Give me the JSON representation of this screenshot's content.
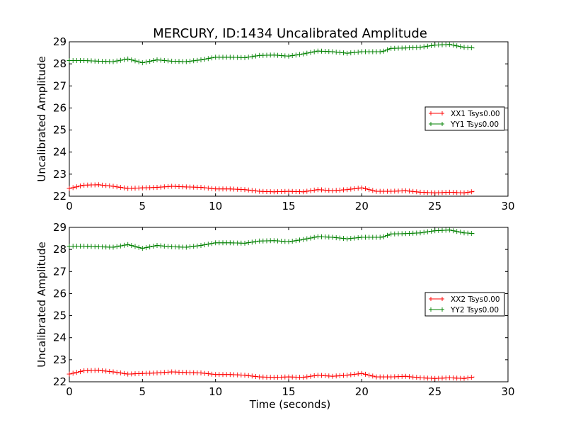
{
  "figure": {
    "title": "MERCURY, ID:1434 Uncalibrated Amplitude",
    "xlabel": "Time (seconds)"
  },
  "colors": {
    "xx": "#ff0000",
    "yy": "#008000"
  },
  "chart_data": [
    {
      "type": "line",
      "ylabel": "Uncalibrated Amplitude",
      "xlim": [
        0,
        30
      ],
      "ylim": [
        22,
        29
      ],
      "xticks": [
        "0",
        "5",
        "10",
        "15",
        "20",
        "25",
        "30"
      ],
      "yticks": [
        "22",
        "23",
        "24",
        "25",
        "26",
        "27",
        "28",
        "29"
      ],
      "legend_position": "center-right",
      "marker": "+",
      "grid": false,
      "series": [
        {
          "name": "XX1 Tsys0.00",
          "color": "#ff0000",
          "x": [
            0,
            1,
            2,
            3,
            4,
            5,
            6,
            7,
            8,
            9,
            10,
            11,
            12,
            13,
            14,
            15,
            16,
            17,
            18,
            19,
            20,
            21,
            22,
            23,
            24,
            25,
            26,
            27,
            27.7
          ],
          "y": [
            22.35,
            22.5,
            22.52,
            22.45,
            22.35,
            22.38,
            22.4,
            22.45,
            22.42,
            22.4,
            22.33,
            22.33,
            22.3,
            22.22,
            22.2,
            22.22,
            22.2,
            22.3,
            22.25,
            22.3,
            22.38,
            22.22,
            22.22,
            22.25,
            22.18,
            22.15,
            22.18,
            22.15,
            22.22
          ]
        },
        {
          "name": "YY1 Tsys0.00",
          "color": "#008000",
          "x": [
            0,
            1,
            2,
            3,
            4,
            5,
            6,
            7,
            8,
            9,
            10,
            11,
            12,
            13,
            14,
            15,
            16,
            17,
            18,
            19,
            20,
            21,
            21.4,
            22,
            23,
            24,
            25,
            26,
            27,
            27.7
          ],
          "y": [
            28.15,
            28.15,
            28.12,
            28.1,
            28.22,
            28.05,
            28.18,
            28.12,
            28.1,
            28.18,
            28.3,
            28.3,
            28.28,
            28.38,
            28.4,
            28.35,
            28.45,
            28.58,
            28.55,
            28.48,
            28.55,
            28.55,
            28.55,
            28.7,
            28.72,
            28.75,
            28.85,
            28.88,
            28.75,
            28.72
          ]
        }
      ]
    },
    {
      "type": "line",
      "ylabel": "Uncalibrated Amplitude",
      "xlabel": "Time (seconds)",
      "xlim": [
        0,
        30
      ],
      "ylim": [
        22,
        29
      ],
      "xticks": [
        "0",
        "5",
        "10",
        "15",
        "20",
        "25",
        "30"
      ],
      "yticks": [
        "22",
        "23",
        "24",
        "25",
        "26",
        "27",
        "28",
        "29"
      ],
      "legend_position": "center-right",
      "marker": "+",
      "grid": false,
      "series": [
        {
          "name": "XX2 Tsys0.00",
          "color": "#ff0000",
          "x": [
            0,
            1,
            2,
            3,
            4,
            5,
            6,
            7,
            8,
            9,
            10,
            11,
            12,
            13,
            14,
            15,
            16,
            17,
            18,
            19,
            20,
            21,
            22,
            23,
            24,
            25,
            26,
            27,
            27.7
          ],
          "y": [
            22.35,
            22.5,
            22.52,
            22.45,
            22.35,
            22.38,
            22.4,
            22.45,
            22.42,
            22.4,
            22.33,
            22.33,
            22.3,
            22.22,
            22.2,
            22.22,
            22.2,
            22.3,
            22.25,
            22.3,
            22.38,
            22.22,
            22.22,
            22.25,
            22.18,
            22.15,
            22.18,
            22.15,
            22.22
          ]
        },
        {
          "name": "YY2 Tsys0.00",
          "color": "#008000",
          "x": [
            0,
            1,
            2,
            3,
            4,
            5,
            6,
            7,
            8,
            9,
            10,
            11,
            12,
            13,
            14,
            15,
            16,
            17,
            18,
            19,
            20,
            21,
            21.4,
            22,
            23,
            24,
            25,
            26,
            27,
            27.7
          ],
          "y": [
            28.15,
            28.15,
            28.12,
            28.1,
            28.22,
            28.05,
            28.18,
            28.12,
            28.1,
            28.18,
            28.3,
            28.3,
            28.28,
            28.38,
            28.4,
            28.35,
            28.45,
            28.58,
            28.55,
            28.48,
            28.55,
            28.55,
            28.55,
            28.7,
            28.72,
            28.75,
            28.85,
            28.88,
            28.75,
            28.72
          ]
        }
      ]
    }
  ]
}
